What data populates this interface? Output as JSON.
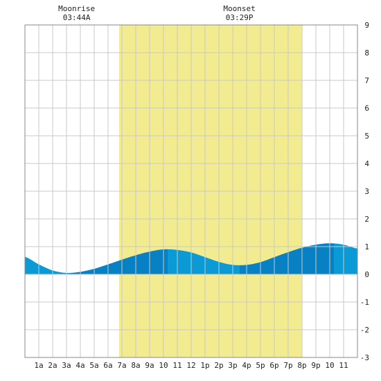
{
  "chart_data": {
    "type": "area",
    "title": "",
    "xlabel": "",
    "ylabel": "",
    "ylim": [
      -3,
      9
    ],
    "xlim": [
      0,
      24
    ],
    "grid": true,
    "x_tick_labels": [
      "1a",
      "2a",
      "3a",
      "4a",
      "5a",
      "6a",
      "7a",
      "8a",
      "9a",
      "10",
      "11",
      "12",
      "1p",
      "2p",
      "3p",
      "4p",
      "5p",
      "6p",
      "7p",
      "8p",
      "9p",
      "10",
      "11"
    ],
    "y_tick_labels": [
      "9",
      "8",
      "7",
      "6",
      "5",
      "4",
      "3",
      "2",
      "1",
      "0",
      "-1",
      "-2",
      "-3"
    ],
    "daylight": {
      "start_hour": 6.8,
      "end_hour": 19.97,
      "color": "#f2eb8f"
    },
    "moonrise": {
      "label": "Moonrise",
      "time": "03:44A",
      "hour": 3.73
    },
    "moonset": {
      "label": "Moonset",
      "time": "03:29P",
      "hour": 15.48
    },
    "series": [
      {
        "x": [
          0,
          1,
          2,
          3,
          4,
          5,
          6,
          7,
          8,
          9,
          10,
          11,
          12,
          13,
          14,
          15,
          16,
          17,
          18,
          19,
          20,
          21,
          22,
          23,
          24
        ],
        "values": [
          0.63,
          0.36,
          0.14,
          0.05,
          0.09,
          0.2,
          0.36,
          0.53,
          0.69,
          0.82,
          0.9,
          0.88,
          0.79,
          0.62,
          0.45,
          0.34,
          0.34,
          0.44,
          0.62,
          0.8,
          0.96,
          1.07,
          1.12,
          1.07,
          0.93
        ]
      }
    ],
    "fill_segments": [
      {
        "start": 0,
        "end": 3.3,
        "color": "#0a9ad6"
      },
      {
        "start": 3.3,
        "end": 10.3,
        "color": "#0880c4"
      },
      {
        "start": 10.3,
        "end": 15.5,
        "color": "#0a9ad6"
      },
      {
        "start": 15.5,
        "end": 22.3,
        "color": "#0880c4"
      },
      {
        "start": 22.3,
        "end": 24,
        "color": "#0a9ad6"
      }
    ],
    "colors": {
      "grid": "#c8c8c8",
      "frame": "#888888",
      "background": "#ffffff"
    }
  }
}
